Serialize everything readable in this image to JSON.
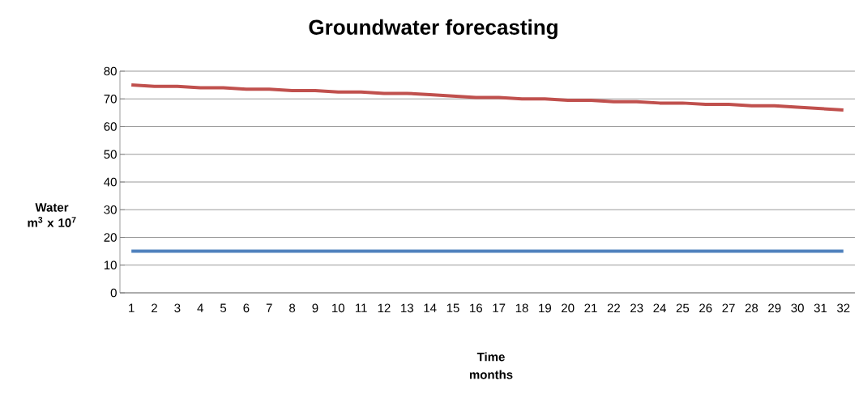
{
  "chart_data": {
    "type": "line",
    "title": "Groundwater forecasting",
    "xlabel": "Time months",
    "ylabel": "Water m$^{3}$ x 10$^{7}$",
    "categories": [
      "1",
      "2",
      "3",
      "4",
      "5",
      "6",
      "7",
      "8",
      "9",
      "10",
      "11",
      "12",
      "13",
      "14",
      "15",
      "16",
      "17",
      "18",
      "19",
      "20",
      "21",
      "22",
      "23",
      "24",
      "25",
      "26",
      "27",
      "28",
      "29",
      "30",
      "31",
      "32"
    ],
    "series": [
      {
        "color": "#c0504d",
        "values": [
          75,
          74.5,
          74.5,
          74,
          74,
          73.5,
          73.5,
          73,
          73,
          72.5,
          72.5,
          72,
          72,
          71.5,
          71,
          70.5,
          70.5,
          70,
          70,
          69.5,
          69.5,
          69,
          69,
          68.5,
          68.5,
          68,
          68,
          67.5,
          67.5,
          67,
          66.5,
          66
        ]
      },
      {
        "color": "#4f81bd",
        "values": [
          15,
          15,
          15,
          15,
          15,
          15,
          15,
          15,
          15,
          15,
          15,
          15,
          15,
          15,
          15,
          15,
          15,
          15,
          15,
          15,
          15,
          15,
          15,
          15,
          15,
          15,
          15,
          15,
          15,
          15,
          15,
          15
        ]
      }
    ],
    "ylim": [
      0,
      80
    ],
    "yticks": [
      0,
      10,
      20,
      30,
      40,
      50,
      60,
      70,
      80
    ],
    "grid": "y",
    "legend": false,
    "marker": "none",
    "line_style": "solid"
  }
}
